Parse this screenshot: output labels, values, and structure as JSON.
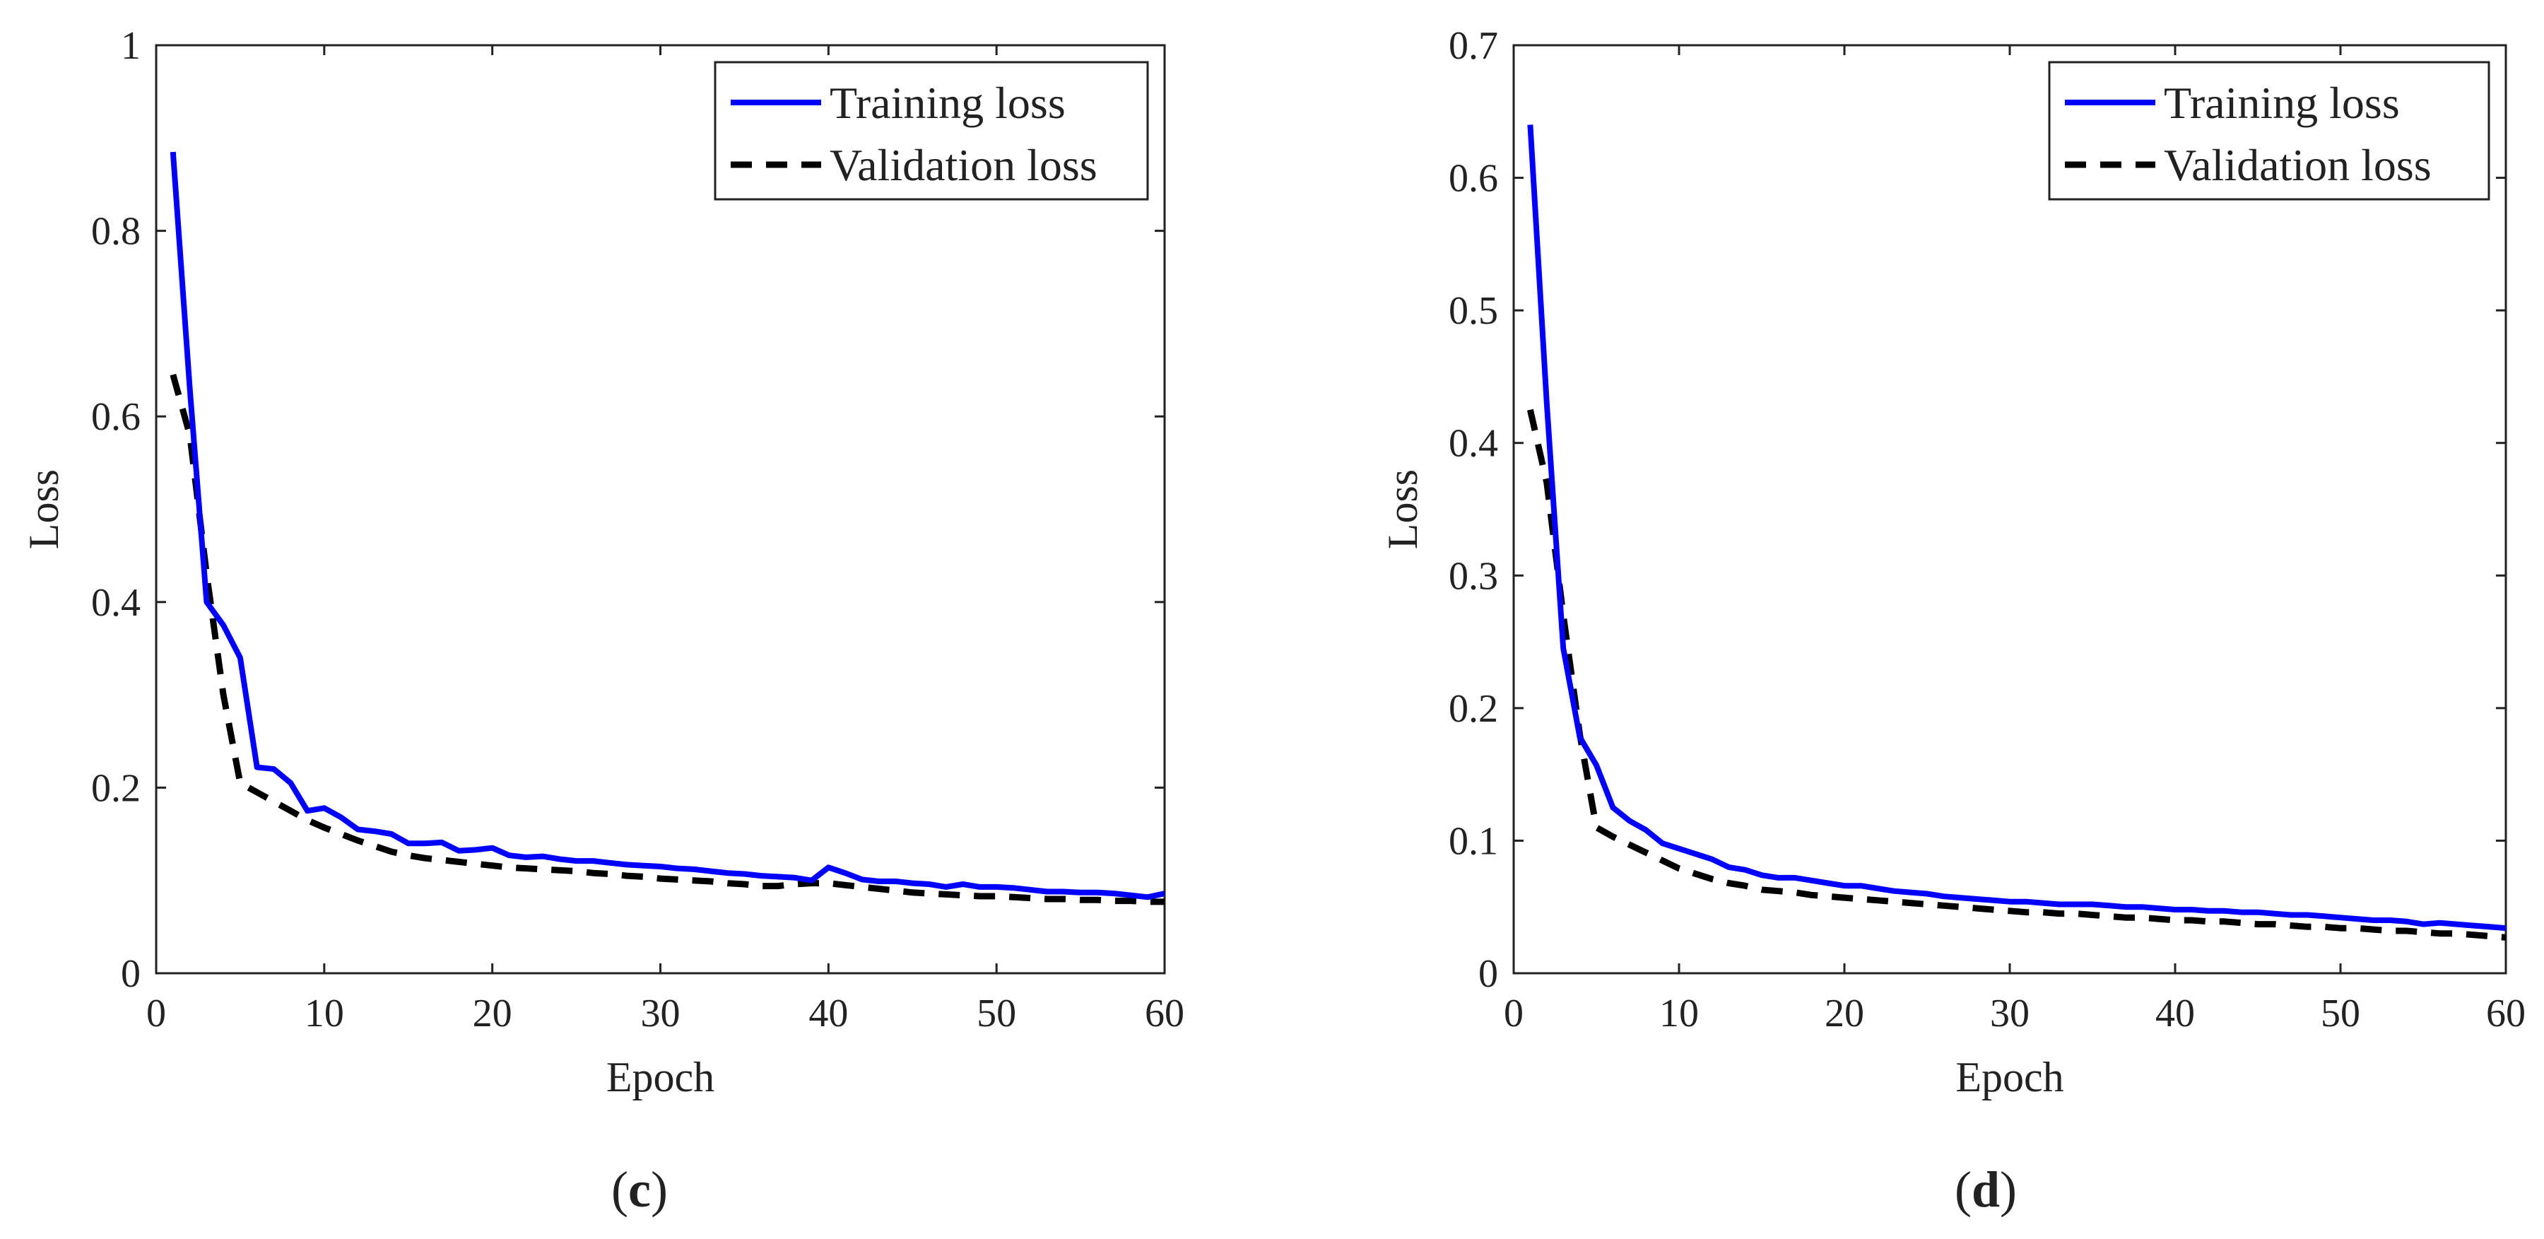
{
  "colors": {
    "training": "#0000ff",
    "validation": "#000000",
    "axis": "#222222"
  },
  "chart_data": [
    {
      "type": "line",
      "caption_letter": "c",
      "xlabel": "Epoch",
      "ylabel": "Loss",
      "xlim": [
        0,
        60
      ],
      "ylim": [
        0,
        1
      ],
      "xticks": [
        0,
        10,
        20,
        30,
        40,
        50,
        60
      ],
      "xtick_labels": [
        "0",
        "10",
        "20",
        "30",
        "40",
        "50",
        "60"
      ],
      "yticks": [
        0,
        0.2,
        0.4,
        0.6,
        0.8,
        1
      ],
      "ytick_labels": [
        "0",
        "0.2",
        "0.4",
        "0.6",
        "0.8",
        "1"
      ],
      "legend_position": "top-right",
      "x": [
        1,
        2,
        3,
        4,
        5,
        6,
        7,
        8,
        9,
        10,
        11,
        12,
        13,
        14,
        15,
        16,
        17,
        18,
        19,
        20,
        21,
        22,
        23,
        24,
        25,
        26,
        27,
        28,
        29,
        30,
        31,
        32,
        33,
        34,
        35,
        36,
        37,
        38,
        39,
        40,
        41,
        42,
        43,
        44,
        45,
        46,
        47,
        48,
        49,
        50,
        51,
        52,
        53,
        54,
        55,
        56,
        57,
        58,
        59,
        60
      ],
      "series": [
        {
          "name": "Training loss",
          "style": "solid",
          "values": [
            0.885,
            0.63,
            0.4,
            0.375,
            0.34,
            0.222,
            0.22,
            0.205,
            0.175,
            0.178,
            0.168,
            0.155,
            0.153,
            0.15,
            0.14,
            0.14,
            0.141,
            0.132,
            0.133,
            0.135,
            0.127,
            0.125,
            0.126,
            0.123,
            0.121,
            0.121,
            0.119,
            0.117,
            0.116,
            0.115,
            0.113,
            0.112,
            0.11,
            0.108,
            0.107,
            0.105,
            0.104,
            0.103,
            0.1,
            0.114,
            0.108,
            0.101,
            0.099,
            0.099,
            0.097,
            0.096,
            0.093,
            0.096,
            0.093,
            0.093,
            0.092,
            0.09,
            0.088,
            0.088,
            0.087,
            0.087,
            0.086,
            0.084,
            0.082,
            0.086
          ]
        },
        {
          "name": "Validation loss",
          "style": "dashed",
          "values": [
            0.645,
            0.58,
            0.43,
            0.3,
            0.205,
            0.195,
            0.185,
            0.175,
            0.165,
            0.157,
            0.15,
            0.143,
            0.137,
            0.131,
            0.127,
            0.124,
            0.122,
            0.12,
            0.118,
            0.116,
            0.114,
            0.113,
            0.112,
            0.111,
            0.11,
            0.108,
            0.107,
            0.105,
            0.104,
            0.102,
            0.101,
            0.1,
            0.099,
            0.097,
            0.096,
            0.094,
            0.094,
            0.096,
            0.097,
            0.097,
            0.095,
            0.093,
            0.091,
            0.089,
            0.087,
            0.086,
            0.085,
            0.084,
            0.083,
            0.083,
            0.082,
            0.081,
            0.08,
            0.08,
            0.079,
            0.079,
            0.078,
            0.078,
            0.077,
            0.077
          ]
        }
      ]
    },
    {
      "type": "line",
      "caption_letter": "d",
      "xlabel": "Epoch",
      "ylabel": "Loss",
      "xlim": [
        0,
        60
      ],
      "ylim": [
        0,
        0.7
      ],
      "xticks": [
        0,
        10,
        20,
        30,
        40,
        50,
        60
      ],
      "xtick_labels": [
        "0",
        "10",
        "20",
        "30",
        "40",
        "50",
        "60"
      ],
      "yticks": [
        0,
        0.1,
        0.2,
        0.3,
        0.4,
        0.5,
        0.6,
        0.7
      ],
      "ytick_labels": [
        "0",
        "0.1",
        "0.2",
        "0.3",
        "0.4",
        "0.5",
        "0.6",
        "0.7"
      ],
      "legend_position": "top-right",
      "x": [
        1,
        2,
        3,
        4,
        5,
        6,
        7,
        8,
        9,
        10,
        11,
        12,
        13,
        14,
        15,
        16,
        17,
        18,
        19,
        20,
        21,
        22,
        23,
        24,
        25,
        26,
        27,
        28,
        29,
        30,
        31,
        32,
        33,
        34,
        35,
        36,
        37,
        38,
        39,
        40,
        41,
        42,
        43,
        44,
        45,
        46,
        47,
        48,
        49,
        50,
        51,
        52,
        53,
        54,
        55,
        56,
        57,
        58,
        59,
        60
      ],
      "series": [
        {
          "name": "Training loss",
          "style": "solid",
          "values": [
            0.64,
            0.43,
            0.245,
            0.178,
            0.157,
            0.125,
            0.115,
            0.108,
            0.098,
            0.094,
            0.09,
            0.086,
            0.08,
            0.078,
            0.074,
            0.072,
            0.072,
            0.07,
            0.068,
            0.066,
            0.066,
            0.064,
            0.062,
            0.061,
            0.06,
            0.058,
            0.057,
            0.056,
            0.055,
            0.054,
            0.054,
            0.053,
            0.052,
            0.052,
            0.052,
            0.051,
            0.05,
            0.05,
            0.049,
            0.048,
            0.048,
            0.047,
            0.047,
            0.046,
            0.046,
            0.045,
            0.044,
            0.044,
            0.043,
            0.042,
            0.041,
            0.04,
            0.04,
            0.039,
            0.037,
            0.038,
            0.037,
            0.036,
            0.035,
            0.034
          ]
        },
        {
          "name": "Validation loss",
          "style": "dashed",
          "values": [
            0.425,
            0.37,
            0.27,
            0.18,
            0.11,
            0.103,
            0.097,
            0.091,
            0.085,
            0.079,
            0.075,
            0.071,
            0.068,
            0.066,
            0.063,
            0.062,
            0.061,
            0.059,
            0.058,
            0.057,
            0.056,
            0.055,
            0.054,
            0.053,
            0.052,
            0.051,
            0.05,
            0.049,
            0.048,
            0.047,
            0.046,
            0.046,
            0.045,
            0.045,
            0.044,
            0.043,
            0.042,
            0.042,
            0.041,
            0.04,
            0.04,
            0.039,
            0.039,
            0.038,
            0.037,
            0.037,
            0.036,
            0.035,
            0.035,
            0.034,
            0.034,
            0.033,
            0.032,
            0.032,
            0.031,
            0.03,
            0.03,
            0.029,
            0.028,
            0.027
          ]
        }
      ]
    }
  ]
}
